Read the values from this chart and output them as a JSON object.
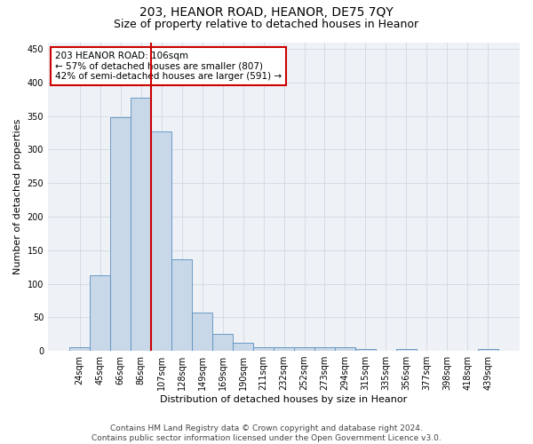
{
  "title_line1": "203, HEANOR ROAD, HEANOR, DE75 7QY",
  "title_line2": "Size of property relative to detached houses in Heanor",
  "xlabel": "Distribution of detached houses by size in Heanor",
  "ylabel": "Number of detached properties",
  "bar_labels": [
    "24sqm",
    "45sqm",
    "66sqm",
    "86sqm",
    "107sqm",
    "128sqm",
    "149sqm",
    "169sqm",
    "190sqm",
    "211sqm",
    "232sqm",
    "252sqm",
    "273sqm",
    "294sqm",
    "315sqm",
    "335sqm",
    "356sqm",
    "377sqm",
    "398sqm",
    "418sqm",
    "439sqm"
  ],
  "bar_values": [
    5,
    112,
    348,
    377,
    327,
    136,
    57,
    25,
    12,
    6,
    5,
    5,
    5,
    5,
    3,
    0,
    3,
    0,
    0,
    0,
    3
  ],
  "bar_color": "#c8d8e8",
  "bar_edge_color": "#5a8fc0",
  "vline_pos": 3.5,
  "vline_color": "#cc0000",
  "annotation_text": "203 HEANOR ROAD: 106sqm\n← 57% of detached houses are smaller (807)\n42% of semi-detached houses are larger (591) →",
  "annotation_box_color": "#ffffff",
  "annotation_box_edge": "#cc0000",
  "ylim": [
    0,
    460
  ],
  "yticks": [
    0,
    50,
    100,
    150,
    200,
    250,
    300,
    350,
    400,
    450
  ],
  "grid_color": "#d0d8e0",
  "bg_color": "#eef2f6",
  "footer_line1": "Contains HM Land Registry data © Crown copyright and database right 2024.",
  "footer_line2": "Contains public sector information licensed under the Open Government Licence v3.0.",
  "title_fontsize": 10,
  "subtitle_fontsize": 9,
  "axis_label_fontsize": 8,
  "tick_fontsize": 7,
  "annotation_fontsize": 7.5,
  "footer_fontsize": 6.5
}
